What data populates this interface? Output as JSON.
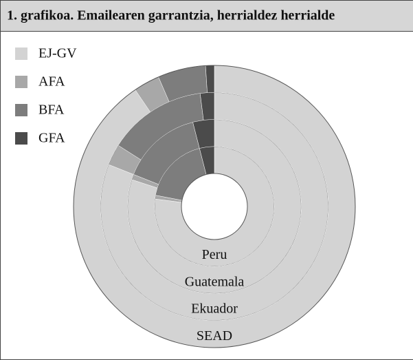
{
  "chart_data": {
    "type": "multi_ring_donut",
    "title": "1. grafikoa. Emailearen garrantzia, herrialdez herrialde",
    "categories": [
      "Peru",
      "Guatemala",
      "Ekuador",
      "SEAD"
    ],
    "series": [
      {
        "name": "EJ-GV",
        "color": "#d3d3d3",
        "values": [
          77,
          80,
          81,
          90.5
        ]
      },
      {
        "name": "AFA",
        "color": "#a8a8a8",
        "values": [
          1,
          1,
          3,
          3
        ]
      },
      {
        "name": "BFA",
        "color": "#7d7d7d",
        "values": [
          18,
          15,
          14,
          5.5
        ]
      },
      {
        "name": "GFA",
        "color": "#4b4b4b",
        "values": [
          4,
          4,
          2,
          1
        ]
      }
    ],
    "legend": "top-left"
  }
}
